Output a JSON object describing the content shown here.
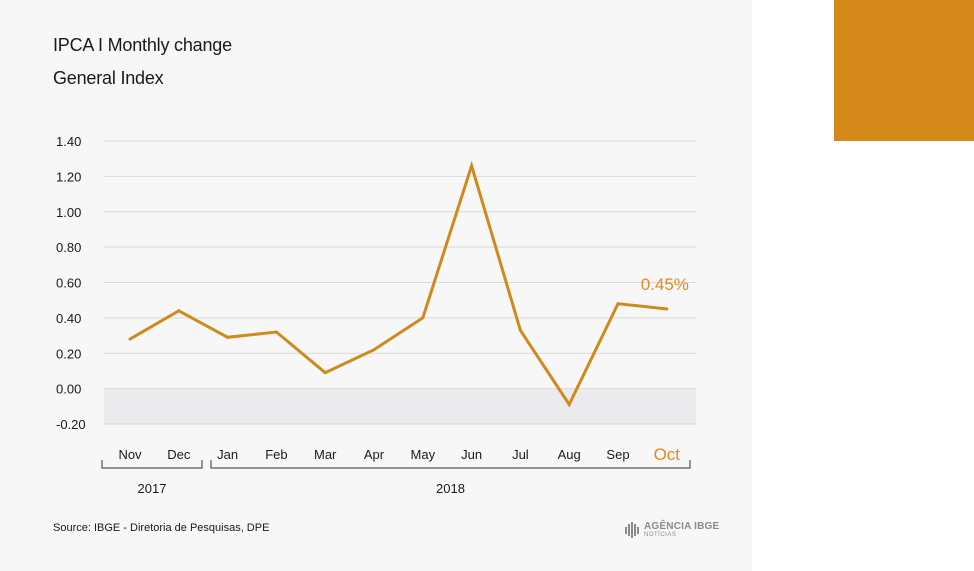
{
  "header": {
    "title": "IPCA  I Monthly change",
    "subtitle": "General Index"
  },
  "footer": {
    "source": "Source: IBGE - Diretoria de Pesquisas, DPE",
    "logo_text": "AGÊNCIA IBGE",
    "logo_subtext": "NOTÍCIAS"
  },
  "colors": {
    "line": "#cf8a1c",
    "accent_block": "#d4891a",
    "negative_band": "#ebebed",
    "gridline": "#d9d9d9",
    "highlight_label": "#e6891e"
  },
  "chart_data": {
    "type": "line",
    "categories": [
      "Nov",
      "Dec",
      "Jan",
      "Feb",
      "Mar",
      "Apr",
      "May",
      "Jun",
      "Jul",
      "Aug",
      "Sep",
      "Oct"
    ],
    "series": [
      {
        "values": [
          0.28,
          0.44,
          0.29,
          0.32,
          0.09,
          0.22,
          0.4,
          1.26,
          0.33,
          -0.09,
          0.48,
          0.45
        ]
      }
    ],
    "ylim": [
      -0.2,
      1.4
    ],
    "yticks": [
      "1.40",
      "1.20",
      "1.00",
      "0.80",
      "0.60",
      "0.40",
      "0.20",
      "0.00",
      "-0.20"
    ],
    "year_groups": [
      {
        "label": "2017",
        "from": 0,
        "to": 1
      },
      {
        "label": "2018",
        "from": 2,
        "to": 11
      }
    ],
    "highlight": {
      "index": 11,
      "label": "0.45%"
    },
    "negative_region_shaded": true,
    "grid": true
  }
}
